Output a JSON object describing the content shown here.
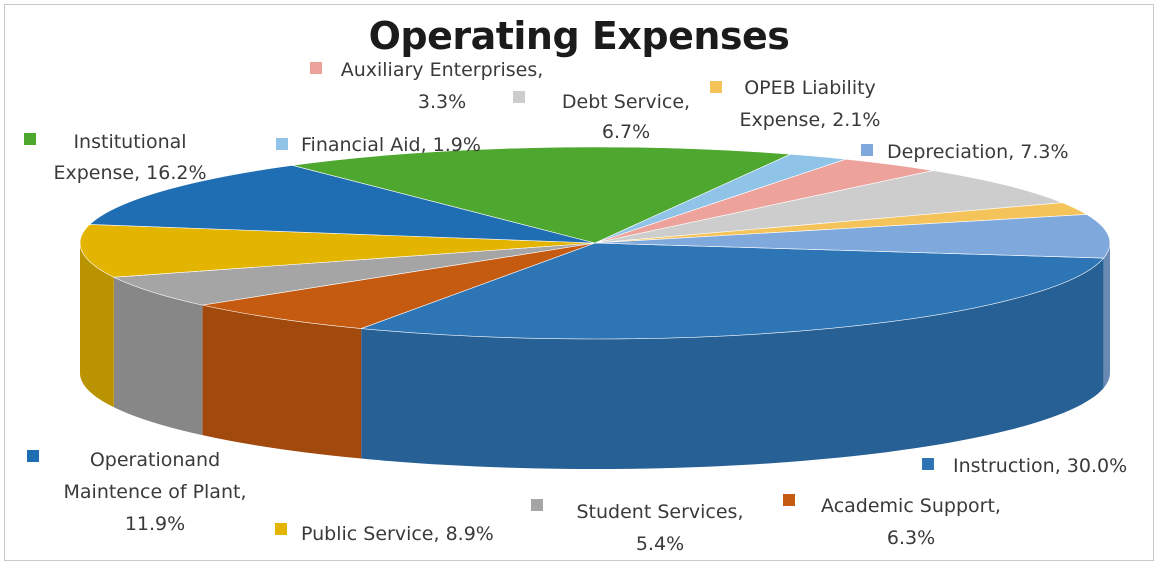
{
  "chart_data": {
    "type": "pie",
    "style": "3d",
    "title": "Operating Expenses",
    "slices": [
      {
        "key": "instruction",
        "line1": "Instruction, 30.0%",
        "line2": "",
        "line3": "",
        "value": 30.0,
        "color": "#2e75b6"
      },
      {
        "key": "academic",
        "line1": "Academic Support,",
        "line2": "6.3%",
        "line3": "",
        "value": 6.3,
        "color": "#c55a11"
      },
      {
        "key": "student",
        "line1": "Student Services,",
        "line2": "5.4%",
        "line3": "",
        "value": 5.4,
        "color": "#a5a5a5"
      },
      {
        "key": "public",
        "line1": "Public Service, 8.9%",
        "line2": "",
        "line3": "",
        "value": 8.9,
        "color": "#e3b400"
      },
      {
        "key": "operation",
        "line1": "Operationand",
        "line2": "Maintence of Plant,",
        "line3": "11.9%",
        "value": 11.9,
        "color": "#1f6db3"
      },
      {
        "key": "institutional",
        "line1": "Institutional",
        "line2": "Expense, 16.2%",
        "line3": "",
        "value": 16.2,
        "color": "#4ea72e"
      },
      {
        "key": "financial",
        "line1": "Financial Aid, 1.9%",
        "line2": "",
        "line3": "",
        "value": 1.9,
        "color": "#8fc3e8"
      },
      {
        "key": "auxiliary",
        "line1": "Auxiliary Enterprises,",
        "line2": "3.3%",
        "line3": "",
        "value": 3.3,
        "color": "#eda39b"
      },
      {
        "key": "debt",
        "line1": "Debt Service,",
        "line2": "6.7%",
        "line3": "",
        "value": 6.7,
        "color": "#cdcdcd"
      },
      {
        "key": "opeb",
        "line1": "OPEB Liability",
        "line2": "Expense, 2.1%",
        "line3": "",
        "value": 2.1,
        "color": "#f4c45a"
      },
      {
        "key": "depreciation",
        "line1": "Depreciation, 7.3%",
        "line2": "",
        "line3": "",
        "value": 7.3,
        "color": "#7fa8dc"
      }
    ]
  }
}
